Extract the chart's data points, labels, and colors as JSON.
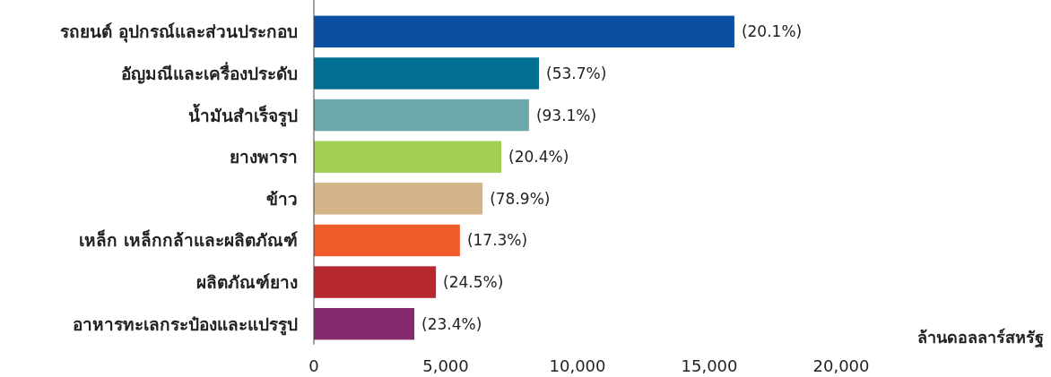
{
  "chart_data": {
    "type": "bar",
    "orientation": "horizontal",
    "xlabel": "ล้านดอลลาร์สหรัฐ",
    "categories": [
      "รถยนต์ อุปกรณ์และส่วนประกอบ",
      "อัญมณีและเครื่องประดับ",
      "น้ำมันสำเร็จรูป",
      "ยางพารา",
      "ข้าว",
      "เหล็ก เหล็กกล้าและผลิตภัณฑ์",
      "ผลิตภัณฑ์ยาง",
      "อาหารทะเลกระป๋องและแปรรูป"
    ],
    "values": [
      15950,
      8540,
      8160,
      7110,
      6400,
      5540,
      4630,
      3810
    ],
    "colors": [
      "#0b4ea2",
      "#006f92",
      "#6aa8ac",
      "#a3cf55",
      "#d4b589",
      "#f15a2a",
      "#b8282f",
      "#862a6f"
    ],
    "annotations": [
      {
        "text": "(20.1%)",
        "x": 15950,
        "y": "รถยนต์ อุปกรณ์และส่วนประกอบ"
      },
      {
        "text": "(53.7%)",
        "x": 8540,
        "y": "อัญมณีและเครื่องประดับ"
      },
      {
        "text": "(93.1%)",
        "x": 8160,
        "y": "น้ำมันสำเร็จรูป"
      },
      {
        "text": "(20.4%)",
        "x": 7110,
        "y": "ยางพารา"
      },
      {
        "text": "(78.9%)",
        "x": 6400,
        "y": "ข้าว"
      },
      {
        "text": "(17.3%)",
        "x": 5540,
        "y": "เหล็ก เหล็กกล้าและผลิตภัณฑ์"
      },
      {
        "text": "(24.5%)",
        "x": 4630,
        "y": "ผลิตภัณฑ์ยาง"
      },
      {
        "text": "(23.4%)",
        "x": 3810,
        "y": "อาหารทะเลกระป๋องและแปรรูป"
      }
    ],
    "xlim": [
      0,
      20000
    ],
    "xticks": [
      {
        "value": 0,
        "label": "0"
      },
      {
        "value": 5000,
        "label": "5,000"
      },
      {
        "value": 10000,
        "label": "10,000"
      },
      {
        "value": 15000,
        "label": "15,000"
      },
      {
        "value": 20000,
        "label": "20,000"
      }
    ],
    "grid": false
  }
}
